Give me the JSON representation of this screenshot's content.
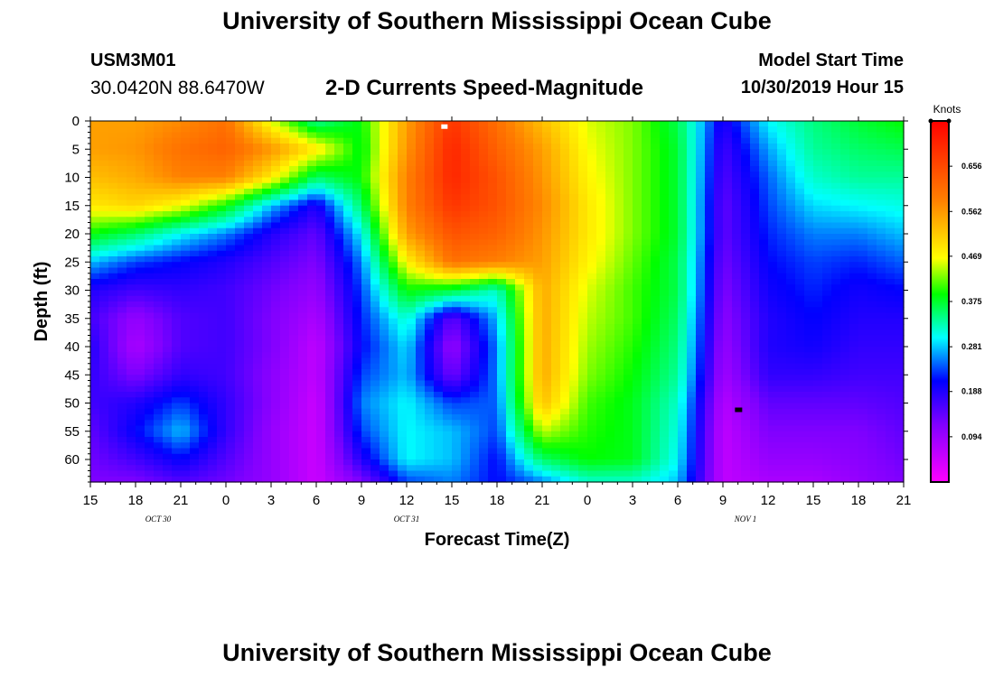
{
  "header": {
    "title": "University of Southern Mississippi Ocean Cube",
    "station_id": "USM3M01",
    "station_coords": "30.0420N 88.6470W",
    "plot_title": "2-D Currents Speed-Magnitude",
    "model_start_label": "Model Start Time",
    "model_start_time": "10/30/2019 Hour 15"
  },
  "footer": {
    "title": "University of Southern Mississippi Ocean Cube"
  },
  "chart_data": {
    "type": "heatmap",
    "title": "2-D Currents Speed-Magnitude",
    "xlabel": "Forecast Time(Z)",
    "ylabel": "Depth (ft)",
    "xlim": [
      0,
      54
    ],
    "ylim": [
      0,
      64
    ],
    "x_ticks": [
      {
        "x": 0,
        "label": "15"
      },
      {
        "x": 3,
        "label": "18"
      },
      {
        "x": 6,
        "label": "21"
      },
      {
        "x": 9,
        "label": "0"
      },
      {
        "x": 12,
        "label": "3"
      },
      {
        "x": 15,
        "label": "6"
      },
      {
        "x": 18,
        "label": "9"
      },
      {
        "x": 21,
        "label": "12"
      },
      {
        "x": 24,
        "label": "15"
      },
      {
        "x": 27,
        "label": "18"
      },
      {
        "x": 30,
        "label": "21"
      },
      {
        "x": 33,
        "label": "0"
      },
      {
        "x": 36,
        "label": "3"
      },
      {
        "x": 39,
        "label": "6"
      },
      {
        "x": 42,
        "label": "9"
      },
      {
        "x": 45,
        "label": "12"
      },
      {
        "x": 48,
        "label": "15"
      },
      {
        "x": 51,
        "label": "18"
      },
      {
        "x": 54,
        "label": "21"
      }
    ],
    "date_labels": [
      {
        "x": 4.5,
        "label": "OCT 30"
      },
      {
        "x": 21,
        "label": "OCT 31"
      },
      {
        "x": 43.5,
        "label": "NOV 1"
      }
    ],
    "y_ticks": [
      0,
      5,
      10,
      15,
      20,
      25,
      30,
      35,
      40,
      45,
      50,
      55,
      60
    ],
    "colorbar": {
      "label": "Knots",
      "min": 0.0,
      "max": 0.75,
      "ticks": [
        "0.656",
        "0.562",
        "0.469",
        "0.375",
        "0.281",
        "0.188",
        "0.094"
      ],
      "tick_values": [
        0.656,
        0.562,
        0.469,
        0.375,
        0.281,
        0.188,
        0.094
      ]
    },
    "speed_samples_knots": {
      "hours": [
        0,
        3,
        6,
        9,
        12,
        15,
        18,
        21,
        24,
        27,
        30,
        33,
        36,
        39,
        42,
        45,
        48,
        51,
        54
      ],
      "depths_ft": [
        0,
        5,
        10,
        15,
        20,
        25,
        30,
        35,
        40,
        45,
        50,
        55,
        60,
        64
      ],
      "rows": [
        [
          0.55,
          0.55,
          0.57,
          0.6,
          0.45,
          0.32,
          0.38,
          0.55,
          0.68,
          0.6,
          0.52,
          0.45,
          0.42,
          0.35,
          0.18,
          0.28,
          0.33,
          0.36,
          0.38
        ],
        [
          0.55,
          0.56,
          0.6,
          0.62,
          0.56,
          0.48,
          0.37,
          0.56,
          0.7,
          0.62,
          0.55,
          0.46,
          0.42,
          0.36,
          0.16,
          0.25,
          0.32,
          0.34,
          0.35
        ],
        [
          0.52,
          0.54,
          0.58,
          0.58,
          0.48,
          0.34,
          0.38,
          0.58,
          0.7,
          0.64,
          0.56,
          0.47,
          0.42,
          0.36,
          0.15,
          0.23,
          0.3,
          0.32,
          0.32
        ],
        [
          0.48,
          0.5,
          0.46,
          0.38,
          0.26,
          0.18,
          0.34,
          0.58,
          0.68,
          0.64,
          0.57,
          0.48,
          0.42,
          0.36,
          0.14,
          0.22,
          0.27,
          0.28,
          0.29
        ],
        [
          0.38,
          0.34,
          0.28,
          0.24,
          0.18,
          0.14,
          0.28,
          0.55,
          0.64,
          0.62,
          0.56,
          0.48,
          0.42,
          0.36,
          0.14,
          0.21,
          0.24,
          0.24,
          0.26
        ],
        [
          0.26,
          0.22,
          0.2,
          0.18,
          0.15,
          0.12,
          0.24,
          0.47,
          0.6,
          0.58,
          0.55,
          0.47,
          0.41,
          0.35,
          0.13,
          0.2,
          0.22,
          0.21,
          0.23
        ],
        [
          0.18,
          0.16,
          0.17,
          0.16,
          0.13,
          0.1,
          0.22,
          0.38,
          0.36,
          0.3,
          0.54,
          0.45,
          0.4,
          0.35,
          0.12,
          0.19,
          0.21,
          0.19,
          0.2
        ],
        [
          0.16,
          0.1,
          0.15,
          0.16,
          0.12,
          0.08,
          0.21,
          0.3,
          0.14,
          0.26,
          0.54,
          0.44,
          0.4,
          0.34,
          0.11,
          0.18,
          0.2,
          0.18,
          0.18
        ],
        [
          0.18,
          0.08,
          0.15,
          0.16,
          0.12,
          0.06,
          0.2,
          0.27,
          0.1,
          0.24,
          0.54,
          0.43,
          0.39,
          0.33,
          0.1,
          0.18,
          0.19,
          0.17,
          0.17
        ],
        [
          0.17,
          0.12,
          0.17,
          0.16,
          0.11,
          0.06,
          0.22,
          0.26,
          0.13,
          0.24,
          0.54,
          0.42,
          0.38,
          0.32,
          0.09,
          0.17,
          0.17,
          0.16,
          0.16
        ],
        [
          0.16,
          0.18,
          0.22,
          0.17,
          0.11,
          0.05,
          0.24,
          0.28,
          0.22,
          0.23,
          0.52,
          0.4,
          0.37,
          0.3,
          0.07,
          0.14,
          0.14,
          0.14,
          0.15
        ],
        [
          0.14,
          0.2,
          0.26,
          0.17,
          0.1,
          0.05,
          0.22,
          0.28,
          0.26,
          0.22,
          0.44,
          0.39,
          0.37,
          0.29,
          0.06,
          0.12,
          0.12,
          0.12,
          0.14
        ],
        [
          0.13,
          0.16,
          0.2,
          0.15,
          0.1,
          0.05,
          0.18,
          0.28,
          0.26,
          0.2,
          0.34,
          0.38,
          0.37,
          0.28,
          0.06,
          0.1,
          0.1,
          0.11,
          0.13
        ],
        [
          0.12,
          0.12,
          0.15,
          0.13,
          0.1,
          0.05,
          0.12,
          0.22,
          0.24,
          0.2,
          0.24,
          0.3,
          0.3,
          0.26,
          0.06,
          0.08,
          0.08,
          0.1,
          0.12
        ]
      ]
    }
  }
}
